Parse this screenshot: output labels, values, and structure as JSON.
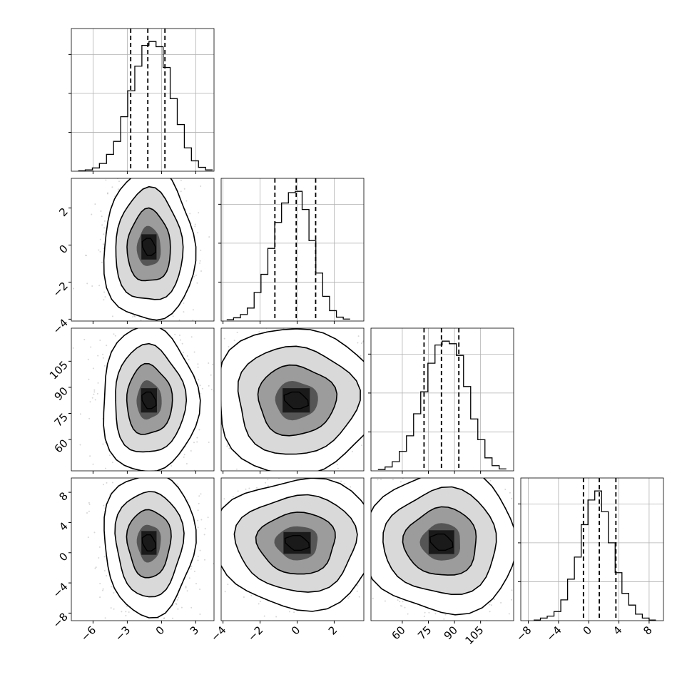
{
  "chart_data": {
    "type": "corner",
    "grid": true,
    "axes_ticks": {
      "x": [
        {
          "values": [
            -6,
            -3,
            0,
            3
          ],
          "labels": [
            "−6",
            "−3",
            "0",
            "3"
          ]
        },
        {
          "values": [
            -4,
            -2,
            0,
            2
          ],
          "labels": [
            "−4",
            "−2",
            "0",
            "2"
          ]
        },
        {
          "values": [
            60,
            75,
            90,
            105
          ],
          "labels": [
            "60",
            "75",
            "90",
            "105"
          ]
        },
        {
          "values": [
            -8,
            -4,
            0,
            4,
            8
          ],
          "labels": [
            "−8",
            "−4",
            "0",
            "4",
            "8"
          ]
        }
      ],
      "y": [
        null,
        {
          "values": [
            -4,
            -2,
            0,
            2
          ],
          "labels": [
            "−4",
            "−2",
            "0",
            "2"
          ]
        },
        {
          "values": [
            60,
            75,
            90,
            105
          ],
          "labels": [
            "60",
            "75",
            "90",
            "105"
          ]
        },
        {
          "values": [
            -8,
            -4,
            0,
            4,
            8
          ],
          "labels": [
            "−8",
            "−4",
            "0",
            "4",
            "8"
          ]
        }
      ]
    },
    "parameters": [
      {
        "range": [
          -7.9,
          4.6
        ],
        "hist_ticks": [
          0.3,
          0.6,
          0.9
        ],
        "hist_ylim": [
          0,
          1.1
        ],
        "quantiles": [
          -2.7,
          -1.2,
          0.3
        ],
        "hist": {
          "bin_start": -7.3,
          "bin_width": 0.62,
          "counts": [
            0.003,
            0.01,
            0.025,
            0.06,
            0.13,
            0.23,
            0.42,
            0.62,
            0.81,
            0.97,
            1.0,
            0.96,
            0.8,
            0.56,
            0.36,
            0.18,
            0.08,
            0.03,
            0.01
          ]
        }
      },
      {
        "range": [
          -4.1,
          3.6
        ],
        "hist_ticks": [
          0.3,
          0.6,
          0.9
        ],
        "hist_ylim": [
          0,
          1.1
        ],
        "quantiles": [
          -1.2,
          -0.05,
          1.0
        ],
        "hist": {
          "bin_start": -3.8,
          "bin_width": 0.37,
          "counts": [
            0.01,
            0.025,
            0.05,
            0.1,
            0.22,
            0.36,
            0.56,
            0.76,
            0.91,
            0.99,
            1.0,
            0.86,
            0.62,
            0.37,
            0.19,
            0.08,
            0.03,
            0.015
          ]
        }
      },
      {
        "range": [
          42,
          124
        ],
        "hist_ticks": [
          0.3,
          0.6,
          0.9
        ],
        "hist_ylim": [
          0,
          1.1
        ],
        "quantiles": [
          72.5,
          82.5,
          92.5
        ],
        "hist": {
          "bin_start": 46,
          "bin_width": 4.1,
          "counts": [
            0.01,
            0.03,
            0.07,
            0.15,
            0.27,
            0.44,
            0.61,
            0.83,
            0.97,
            1.0,
            0.98,
            0.89,
            0.65,
            0.4,
            0.24,
            0.1,
            0.04,
            0.015
          ]
        }
      },
      {
        "range": [
          -9.0,
          9.9
        ],
        "hist_ticks": [
          0.3,
          0.6,
          0.9
        ],
        "hist_ylim": [
          0,
          1.1
        ],
        "quantiles": [
          -0.7,
          1.4,
          3.6
        ],
        "hist": {
          "bin_start": -7.3,
          "bin_width": 0.9,
          "counts": [
            0.005,
            0.02,
            0.035,
            0.07,
            0.16,
            0.32,
            0.49,
            0.74,
            0.93,
            1.0,
            0.84,
            0.6,
            0.37,
            0.21,
            0.12,
            0.05,
            0.02,
            0.005
          ]
        }
      }
    ],
    "pairs": [
      {
        "row": 1,
        "col": 0,
        "center": [
          -1.1,
          -0.1
        ],
        "spread": [
          1.9,
          1.95
        ]
      },
      {
        "row": 2,
        "col": 0,
        "center": [
          -1.1,
          82.5
        ],
        "spread": [
          2.0,
          20.0
        ]
      },
      {
        "row": 2,
        "col": 1,
        "center": [
          -0.05,
          82.5
        ],
        "spread": [
          2.1,
          20.0
        ]
      },
      {
        "row": 3,
        "col": 0,
        "center": [
          -1.1,
          1.3
        ],
        "spread": [
          1.9,
          4.5
        ]
      },
      {
        "row": 3,
        "col": 1,
        "center": [
          0.0,
          1.3
        ],
        "spread": [
          2.1,
          4.1
        ]
      },
      {
        "row": 3,
        "col": 2,
        "center": [
          82.5,
          1.4
        ],
        "spread": [
          21.0,
          4.5
        ]
      }
    ]
  }
}
